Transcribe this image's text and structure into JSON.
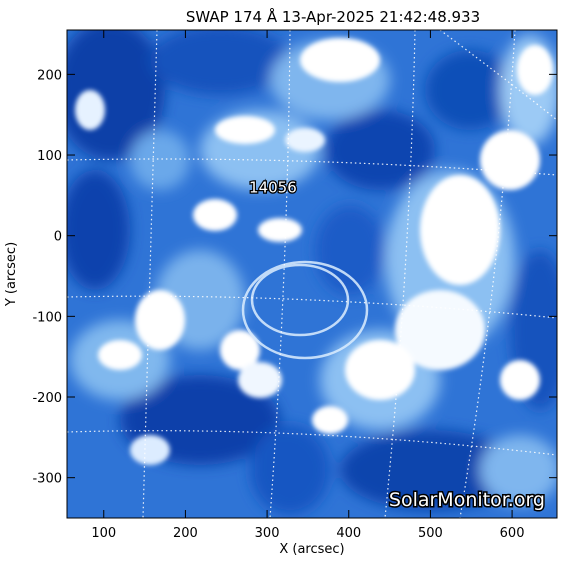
{
  "title": "SWAP 174 Å 13-Apr-2025 21:42:48.933",
  "x_axis": {
    "label": "X (arcsec)",
    "range": [
      55,
      655
    ],
    "ticks": [
      100,
      200,
      300,
      400,
      500,
      600
    ]
  },
  "y_axis": {
    "label": "Y (arcsec)",
    "range": [
      -350,
      255
    ],
    "ticks": [
      200,
      100,
      0,
      -100,
      -200,
      -300
    ]
  },
  "region_label": {
    "text": "14056",
    "x": 350,
    "y": 60
  },
  "watermark": "SolarMonitor.org",
  "colors": {
    "deep": "#0b3fa8",
    "mid": "#2f74d6",
    "light": "#8cc0f2",
    "bright": "#ffffff",
    "background": "#ffffff",
    "axes": "#000000"
  },
  "grid": "dotted heliographic grid, on"
}
